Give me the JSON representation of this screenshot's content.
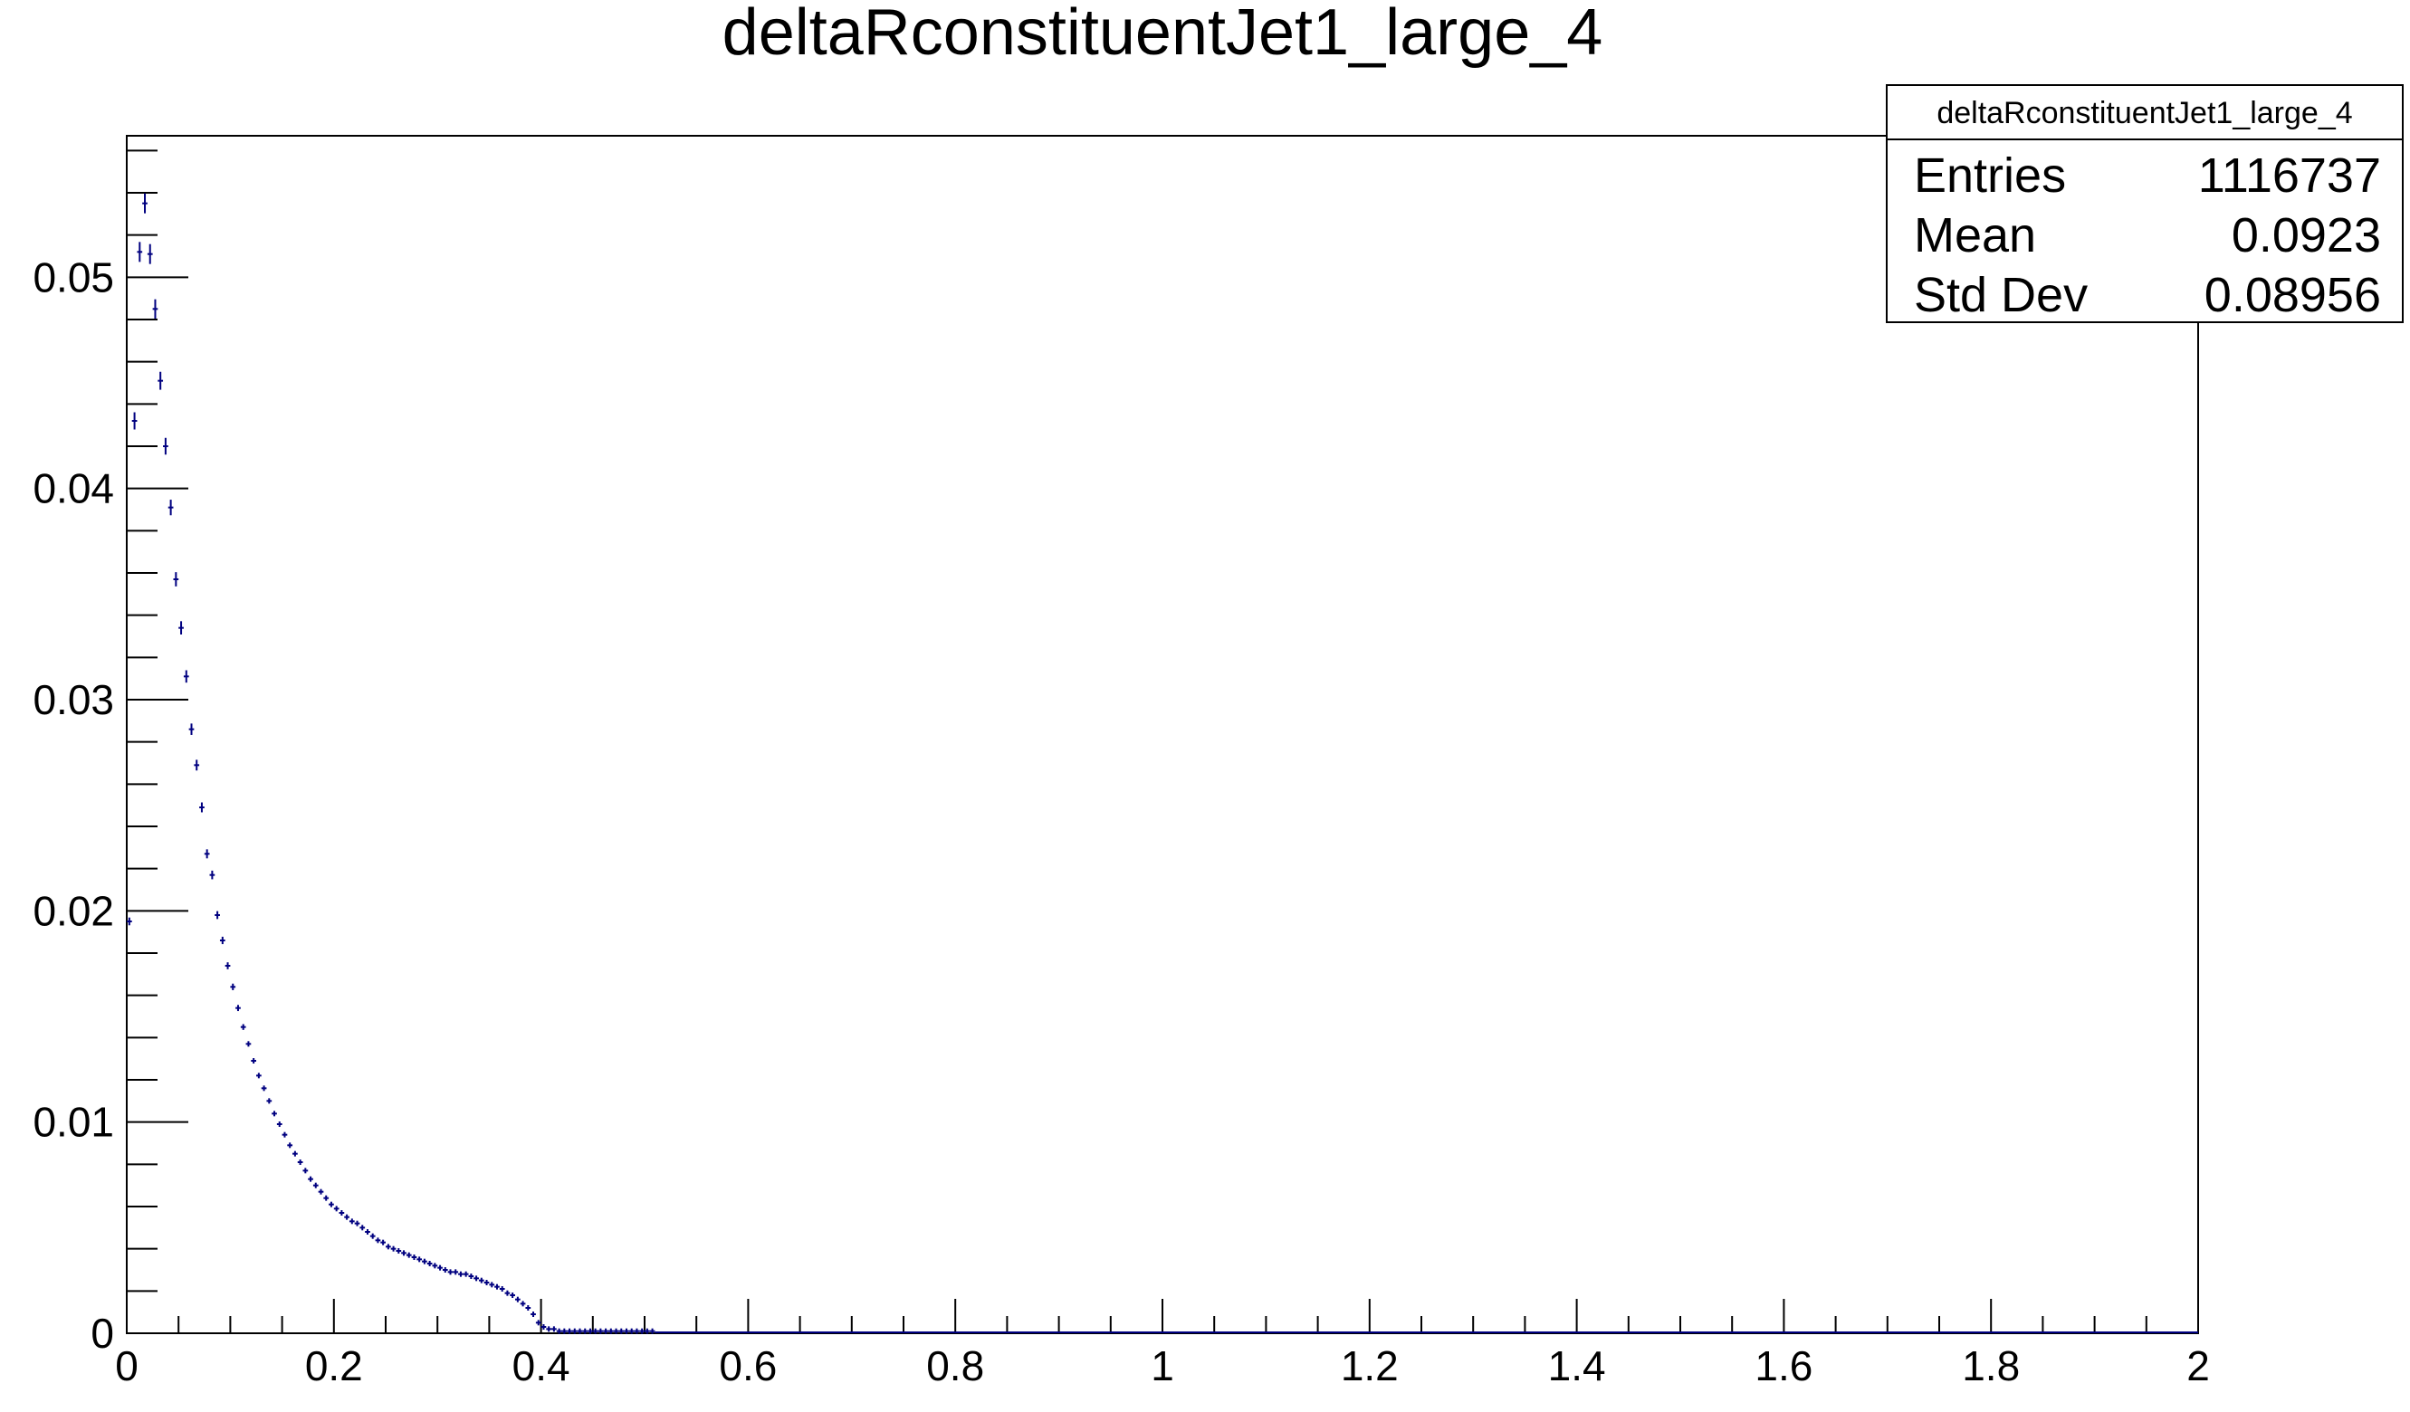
{
  "chart_data": {
    "type": "scatter",
    "title": "deltaRconstituentJet1_large_4",
    "xlabel": "",
    "ylabel": "",
    "xlim": [
      0,
      2
    ],
    "ylim": [
      0,
      0.0567
    ],
    "grid": false,
    "x_tick_labels": [
      "0",
      "0.2",
      "0.4",
      "0.6",
      "0.8",
      "1",
      "1.2",
      "1.4",
      "1.6",
      "1.8",
      "2"
    ],
    "y_tick_labels": [
      "0",
      "0.01",
      "0.02",
      "0.03",
      "0.04",
      "0.05"
    ],
    "marker_color": "#000080",
    "stats_box": {
      "title": "deltaRconstituentJet1_large_4",
      "entries_label": "Entries",
      "entries_value": "1116737",
      "mean_label": "Mean",
      "mean_value": "0.0923",
      "stddev_label": "Std Dev",
      "stddev_value": "0.08956",
      "placement": "top-right"
    },
    "series": [
      {
        "points": [
          [
            0.0025,
            0.0195
          ],
          [
            0.0075,
            0.0432
          ],
          [
            0.0125,
            0.0512
          ],
          [
            0.0175,
            0.0535
          ],
          [
            0.0225,
            0.0511
          ],
          [
            0.0275,
            0.0485
          ],
          [
            0.0325,
            0.0451
          ],
          [
            0.0375,
            0.042
          ],
          [
            0.0425,
            0.0391
          ],
          [
            0.0475,
            0.0357
          ],
          [
            0.0525,
            0.0334
          ],
          [
            0.0575,
            0.0311
          ],
          [
            0.0625,
            0.0286
          ],
          [
            0.0675,
            0.0269
          ],
          [
            0.0725,
            0.0249
          ],
          [
            0.0775,
            0.0227
          ],
          [
            0.0825,
            0.0217
          ],
          [
            0.0875,
            0.0198
          ],
          [
            0.0925,
            0.0186
          ],
          [
            0.0975,
            0.0174
          ],
          [
            0.1025,
            0.0164
          ],
          [
            0.1075,
            0.0154
          ],
          [
            0.1125,
            0.0145
          ],
          [
            0.1175,
            0.0137
          ],
          [
            0.1225,
            0.0129
          ],
          [
            0.1275,
            0.0122
          ],
          [
            0.1325,
            0.0116
          ],
          [
            0.1375,
            0.011
          ],
          [
            0.1425,
            0.0104
          ],
          [
            0.1475,
            0.0099
          ],
          [
            0.1525,
            0.0094
          ],
          [
            0.1575,
            0.0089
          ],
          [
            0.1625,
            0.0085
          ],
          [
            0.1675,
            0.0081
          ],
          [
            0.1725,
            0.0077
          ],
          [
            0.1775,
            0.0073
          ],
          [
            0.1825,
            0.007
          ],
          [
            0.1875,
            0.0067
          ],
          [
            0.1925,
            0.0064
          ],
          [
            0.1975,
            0.0061
          ],
          [
            0.2025,
            0.0059
          ],
          [
            0.2075,
            0.0057
          ],
          [
            0.2125,
            0.0055
          ],
          [
            0.2175,
            0.0053
          ],
          [
            0.2225,
            0.0052
          ],
          [
            0.2275,
            0.005
          ],
          [
            0.2325,
            0.0048
          ],
          [
            0.2375,
            0.0046
          ],
          [
            0.2425,
            0.0044
          ],
          [
            0.2475,
            0.0043
          ],
          [
            0.2525,
            0.0041
          ],
          [
            0.2575,
            0.004
          ],
          [
            0.2625,
            0.0039
          ],
          [
            0.2675,
            0.0038
          ],
          [
            0.2725,
            0.0037
          ],
          [
            0.2775,
            0.0036
          ],
          [
            0.2825,
            0.0035
          ],
          [
            0.2875,
            0.0034
          ],
          [
            0.2925,
            0.0033
          ],
          [
            0.2975,
            0.0032
          ],
          [
            0.3025,
            0.0031
          ],
          [
            0.3075,
            0.003
          ],
          [
            0.3125,
            0.0029
          ],
          [
            0.3175,
            0.0029
          ],
          [
            0.3225,
            0.0028
          ],
          [
            0.3275,
            0.0028
          ],
          [
            0.3325,
            0.0027
          ],
          [
            0.3375,
            0.0026
          ],
          [
            0.3425,
            0.0025
          ],
          [
            0.3475,
            0.0024
          ],
          [
            0.3525,
            0.0023
          ],
          [
            0.3575,
            0.0022
          ],
          [
            0.3625,
            0.0021
          ],
          [
            0.3675,
            0.0019
          ],
          [
            0.3725,
            0.0018
          ],
          [
            0.3775,
            0.0016
          ],
          [
            0.3825,
            0.0014
          ],
          [
            0.3875,
            0.0012
          ],
          [
            0.3925,
            0.0009
          ],
          [
            0.3975,
            0.0005
          ],
          [
            0.4025,
            0.0003
          ],
          [
            0.4075,
            0.0002
          ],
          [
            0.4125,
            0.0002
          ],
          [
            0.4175,
            0.0001
          ],
          [
            0.4225,
            0.0001
          ],
          [
            0.4275,
            0.0001
          ],
          [
            0.4325,
            0.0001
          ],
          [
            0.4375,
            0.0001
          ],
          [
            0.4425,
            0.0001
          ],
          [
            0.4475,
            0.0001
          ],
          [
            0.4525,
            0.0001
          ],
          [
            0.4575,
            0.0001
          ],
          [
            0.4625,
            0.0001
          ],
          [
            0.4675,
            0.0001
          ],
          [
            0.4725,
            0.0001
          ],
          [
            0.4775,
            0.0001
          ],
          [
            0.4825,
            0.0001
          ],
          [
            0.4875,
            0.0001
          ],
          [
            0.4925,
            0.0001
          ],
          [
            0.4975,
            0.0001
          ],
          [
            0.5025,
            0.0001
          ],
          [
            0.5075,
            0.0001
          ]
        ]
      }
    ]
  }
}
